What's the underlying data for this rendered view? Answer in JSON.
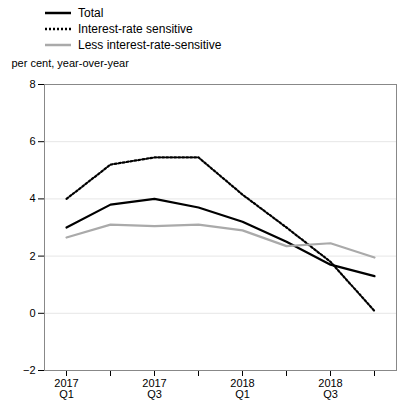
{
  "chart_data": {
    "type": "line",
    "ylabel": "per cent, year-over-year",
    "categories": [
      "2017\nQ1",
      null,
      "2017\nQ3",
      null,
      "2018\nQ1",
      null,
      "2018\nQ3",
      null
    ],
    "series": [
      {
        "name": "Total",
        "color": "#000000",
        "line_style": "solid",
        "values": [
          3.0,
          3.8,
          4.0,
          3.7,
          3.2,
          2.5,
          1.7,
          1.3
        ]
      },
      {
        "name": "Interest-rate sensitive",
        "color": "#000000",
        "line_style": "dotted",
        "values": [
          4.0,
          5.2,
          5.45,
          5.45,
          4.15,
          3.0,
          1.8,
          0.08
        ]
      },
      {
        "name": "Less interest-rate-sensitive",
        "color": "#aaaaaa",
        "line_style": "solid",
        "values": [
          2.65,
          3.1,
          3.05,
          3.1,
          2.9,
          2.35,
          2.45,
          1.95
        ]
      }
    ],
    "ylim": [
      -2,
      8
    ],
    "yticks": [
      -2,
      0,
      2,
      4,
      6,
      8
    ],
    "grid": true,
    "legend": "upper left"
  }
}
